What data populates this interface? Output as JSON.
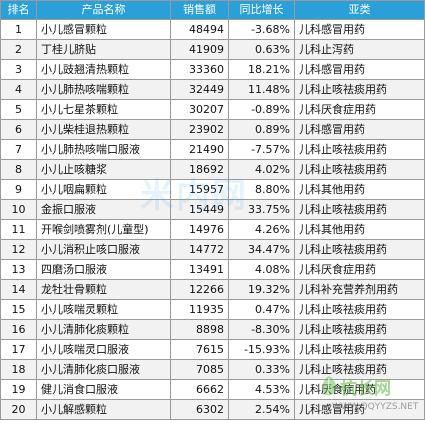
{
  "headers": {
    "rank": "排名",
    "name": "产品名称",
    "sales": "销售额",
    "growth": "同比增长",
    "category": "亚类"
  },
  "rows": [
    {
      "rank": "1",
      "name": "小儿感冒颗粒",
      "sales": "48494",
      "growth": "-3.68%",
      "category": "儿科感冒用药"
    },
    {
      "rank": "2",
      "name": "丁桂儿脐贴",
      "sales": "41909",
      "growth": "0.63%",
      "category": "儿科止泻药"
    },
    {
      "rank": "3",
      "name": "小儿豉翘清热颗粒",
      "sales": "33360",
      "growth": "18.21%",
      "category": "儿科感冒用药"
    },
    {
      "rank": "4",
      "name": "小儿肺热咳喘颗粒",
      "sales": "32449",
      "growth": "11.48%",
      "category": "儿科止咳祛痰用药"
    },
    {
      "rank": "5",
      "name": "小儿七星茶颗粒",
      "sales": "30207",
      "growth": "-0.89%",
      "category": "儿科厌食症用药"
    },
    {
      "rank": "6",
      "name": "小儿柴桂退热颗粒",
      "sales": "23902",
      "growth": "0.89%",
      "category": "儿科感冒用药"
    },
    {
      "rank": "7",
      "name": "小儿肺热咳喘口服液",
      "sales": "21490",
      "growth": "-7.57%",
      "category": "儿科止咳祛痰用药"
    },
    {
      "rank": "8",
      "name": "小儿止咳糖浆",
      "sales": "18692",
      "growth": "4.02%",
      "category": "儿科止咳祛痰用药"
    },
    {
      "rank": "9",
      "name": "小儿咽扁颗粒",
      "sales": "15957",
      "growth": "8.80%",
      "category": "儿科其他用药"
    },
    {
      "rank": "10",
      "name": "金振口服液",
      "sales": "15449",
      "growth": "33.75%",
      "category": "儿科止咳祛痰用药"
    },
    {
      "rank": "11",
      "name": "开喉剑喷雾剂(儿童型)",
      "sales": "14976",
      "growth": "4.26%",
      "category": "儿科其他用药"
    },
    {
      "rank": "12",
      "name": "小儿消积止咳口服液",
      "sales": "14772",
      "growth": "34.47%",
      "category": "儿科止咳祛痰用药"
    },
    {
      "rank": "13",
      "name": "四磨汤口服液",
      "sales": "13491",
      "growth": "4.08%",
      "category": "儿科厌食症用药"
    },
    {
      "rank": "14",
      "name": "龙牡壮骨颗粒",
      "sales": "12266",
      "growth": "19.32%",
      "category": "儿科补充营养剂用药"
    },
    {
      "rank": "15",
      "name": "小儿咳喘灵颗粒",
      "sales": "11935",
      "growth": "0.47%",
      "category": "儿科止咳祛痰用药"
    },
    {
      "rank": "16",
      "name": "小儿清肺化痰颗粒",
      "sales": "8898",
      "growth": "-8.30%",
      "category": "儿科止咳祛痰用药"
    },
    {
      "rank": "17",
      "name": "小儿咳喘灵口服液",
      "sales": "7615",
      "growth": "-15.93%",
      "category": "儿科止咳祛痰用药"
    },
    {
      "rank": "18",
      "name": "小儿清肺化痰口服液",
      "sales": "7085",
      "growth": "0.33%",
      "category": "儿科止咳祛痰用药"
    },
    {
      "rank": "19",
      "name": "健儿消食口服液",
      "sales": "6662",
      "growth": "4.53%",
      "category": "儿科厌食症用药"
    },
    {
      "rank": "20",
      "name": "小儿解感颗粒",
      "sales": "6302",
      "growth": "2.54%",
      "category": "儿科感冒用药"
    }
  ],
  "watermark": {
    "title": "杭长网",
    "url": "WWW.QQYYZS.NET",
    "center_text": "米内网",
    "color": "#5ab43c"
  }
}
